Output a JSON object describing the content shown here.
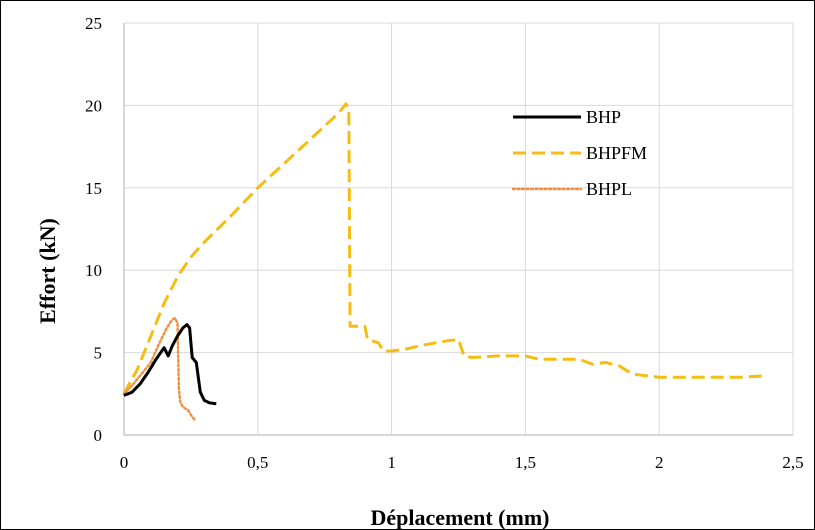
{
  "chart_data": {
    "type": "line",
    "title": "",
    "xlabel": "Déplacement (mm)",
    "ylabel": "Effort (kN)",
    "xlim": [
      0,
      2.5
    ],
    "ylim": [
      0,
      25
    ],
    "x_ticks": [
      0,
      0.5,
      1,
      1.5,
      2,
      2.5
    ],
    "x_tick_labels": [
      "0",
      "0,5",
      "1",
      "1,5",
      "2",
      "2,5"
    ],
    "y_ticks": [
      0,
      5,
      10,
      15,
      20,
      25
    ],
    "y_tick_labels": [
      "0",
      "5",
      "10",
      "15",
      "20",
      "25"
    ],
    "grid": true,
    "legend_position": "top-right",
    "series": [
      {
        "name": "BHP",
        "color": "#000000",
        "style": "solid",
        "points": [
          [
            0.0,
            2.4
          ],
          [
            0.03,
            2.6
          ],
          [
            0.06,
            3.1
          ],
          [
            0.09,
            3.8
          ],
          [
            0.12,
            4.6
          ],
          [
            0.15,
            5.3
          ],
          [
            0.165,
            4.8
          ],
          [
            0.18,
            5.4
          ],
          [
            0.2,
            6.0
          ],
          [
            0.22,
            6.5
          ],
          [
            0.235,
            6.7
          ],
          [
            0.245,
            6.5
          ],
          [
            0.255,
            4.7
          ],
          [
            0.27,
            4.4
          ],
          [
            0.285,
            2.6
          ],
          [
            0.3,
            2.1
          ],
          [
            0.32,
            1.95
          ],
          [
            0.345,
            1.9
          ]
        ]
      },
      {
        "name": "BHPFM",
        "color": "#f5bd14",
        "style": "dashed",
        "points": [
          [
            0.0,
            2.5
          ],
          [
            0.05,
            4.0
          ],
          [
            0.1,
            6.0
          ],
          [
            0.15,
            8.0
          ],
          [
            0.2,
            9.6
          ],
          [
            0.25,
            10.8
          ],
          [
            0.3,
            11.7
          ],
          [
            0.4,
            13.3
          ],
          [
            0.5,
            15.0
          ],
          [
            0.6,
            16.5
          ],
          [
            0.7,
            18.0
          ],
          [
            0.8,
            19.5
          ],
          [
            0.83,
            20.1
          ],
          [
            0.84,
            19.8
          ],
          [
            0.845,
            6.6
          ],
          [
            0.9,
            6.6
          ],
          [
            0.91,
            5.8
          ],
          [
            0.95,
            5.6
          ],
          [
            0.97,
            5.1
          ],
          [
            1.0,
            5.1
          ],
          [
            1.05,
            5.2
          ],
          [
            1.1,
            5.4
          ],
          [
            1.2,
            5.7
          ],
          [
            1.25,
            5.8
          ],
          [
            1.27,
            4.8
          ],
          [
            1.3,
            4.7
          ],
          [
            1.4,
            4.8
          ],
          [
            1.5,
            4.8
          ],
          [
            1.55,
            4.6
          ],
          [
            1.6,
            4.6
          ],
          [
            1.7,
            4.6
          ],
          [
            1.75,
            4.3
          ],
          [
            1.8,
            4.4
          ],
          [
            1.85,
            4.2
          ],
          [
            1.9,
            3.7
          ],
          [
            1.95,
            3.6
          ],
          [
            2.0,
            3.5
          ],
          [
            2.1,
            3.5
          ],
          [
            2.2,
            3.5
          ],
          [
            2.3,
            3.5
          ],
          [
            2.4,
            3.6
          ]
        ]
      },
      {
        "name": "BHPL",
        "color": "#f28e3c",
        "style": "dotted",
        "points": [
          [
            0.0,
            2.5
          ],
          [
            0.03,
            3.0
          ],
          [
            0.06,
            3.6
          ],
          [
            0.1,
            4.4
          ],
          [
            0.13,
            5.5
          ],
          [
            0.16,
            6.5
          ],
          [
            0.18,
            7.0
          ],
          [
            0.19,
            7.1
          ],
          [
            0.2,
            6.8
          ],
          [
            0.205,
            2.8
          ],
          [
            0.21,
            2.0
          ],
          [
            0.22,
            1.7
          ],
          [
            0.24,
            1.5
          ],
          [
            0.255,
            1.1
          ],
          [
            0.265,
            0.9
          ]
        ]
      }
    ]
  }
}
